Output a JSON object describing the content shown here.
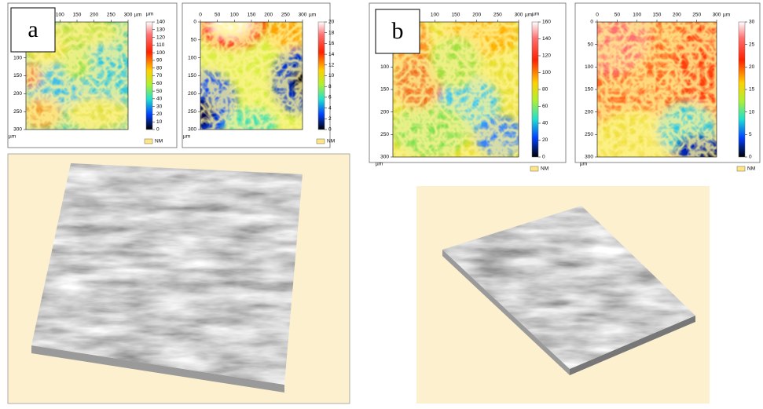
{
  "panels": [
    {
      "label": "a",
      "maps": [
        {
          "x_ticks": [
            100,
            150,
            200,
            250,
            300
          ],
          "x_unit": "µm",
          "y_ticks": [
            100,
            150,
            200,
            250,
            300
          ],
          "y_unit": "µm",
          "colorbar_unit": "µm",
          "colorbar_ticks": [
            140,
            130,
            120,
            110,
            100,
            90,
            80,
            70,
            60,
            50,
            40,
            30,
            20,
            10,
            0
          ],
          "legend": "NM"
        },
        {
          "x_ticks": [
            0,
            50,
            100,
            150,
            200,
            250,
            300
          ],
          "x_unit": "µm",
          "y_ticks": [
            0,
            50,
            100,
            150,
            200,
            250,
            300
          ],
          "y_unit": "µm",
          "colorbar_ticks": [
            20,
            18,
            16,
            14,
            12,
            10,
            8,
            6,
            4,
            2,
            0
          ],
          "legend": "NM"
        }
      ]
    },
    {
      "label": "b",
      "maps": [
        {
          "x_ticks": [
            100,
            150,
            200,
            250,
            300
          ],
          "x_unit": "µm",
          "y_ticks": [
            100,
            150,
            200,
            250,
            300
          ],
          "y_unit": "µm",
          "colorbar_unit": "µm",
          "colorbar_ticks": [
            160,
            140,
            120,
            100,
            80,
            60,
            40,
            20,
            0
          ],
          "legend": "NM"
        },
        {
          "x_ticks": [
            0,
            50,
            100,
            150,
            200,
            250,
            300
          ],
          "x_unit": "µm",
          "y_ticks": [
            0,
            50,
            100,
            150,
            200,
            250,
            300
          ],
          "y_unit": "µm",
          "colorbar_ticks": [
            30,
            25,
            20,
            15,
            10,
            5,
            0
          ],
          "legend": "NM"
        }
      ]
    }
  ]
}
